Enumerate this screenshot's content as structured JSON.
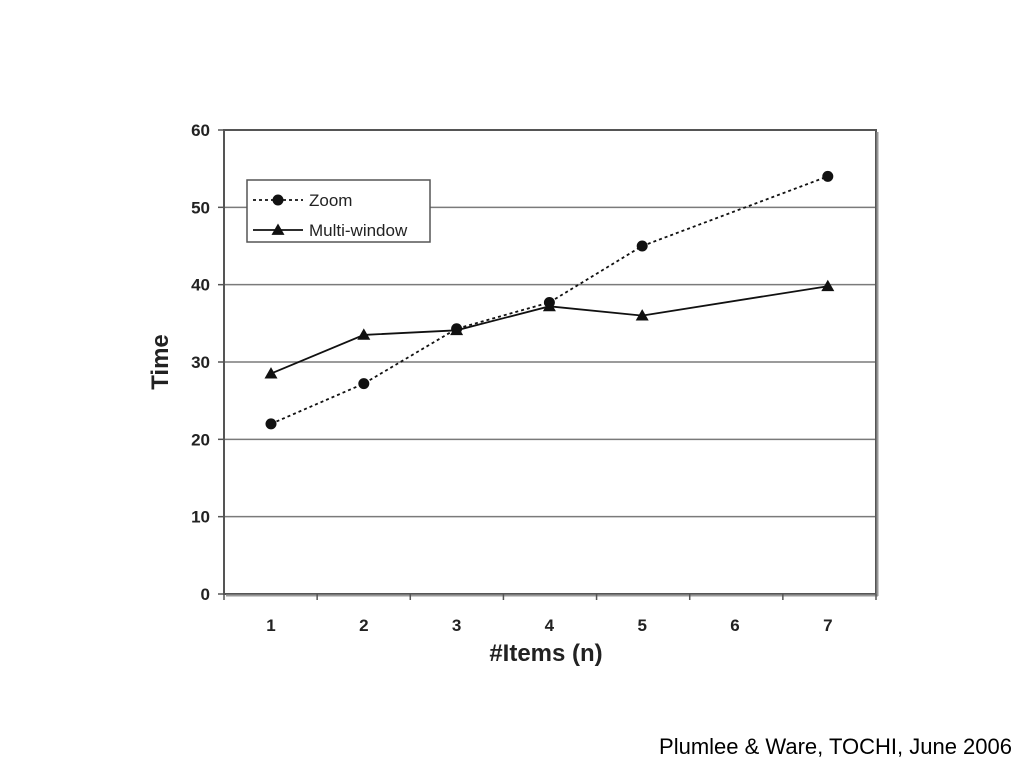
{
  "citation": "Plumlee & Ware, TOCHI, June 2006",
  "chart_data": {
    "type": "line",
    "title": "",
    "xlabel": "#Items (n)",
    "ylabel": "Time",
    "x": [
      1,
      2,
      3,
      4,
      5,
      6,
      7
    ],
    "x_tick_labels": [
      "1",
      "2",
      "3",
      "4",
      "5",
      "6",
      "7"
    ],
    "y_tick_labels": [
      "0",
      "10",
      "20",
      "30",
      "40",
      "50",
      "60"
    ],
    "ylim": [
      0,
      60
    ],
    "grid": "horizontal",
    "legend_position": "top-left",
    "series": [
      {
        "name": "Zoom",
        "line_style": "dotted",
        "marker": "circle",
        "x": [
          1,
          2,
          3,
          4,
          5,
          7
        ],
        "values": [
          22,
          27.2,
          34.3,
          37.7,
          45,
          54
        ]
      },
      {
        "name": "Multi-window",
        "line_style": "solid",
        "marker": "triangle",
        "x": [
          1,
          2,
          3,
          4,
          5,
          7
        ],
        "values": [
          28.5,
          33.5,
          34.1,
          37.2,
          36,
          39.8
        ]
      }
    ],
    "colors": {
      "line": "#111111",
      "grid": "#7a7a7a",
      "frame": "#555555"
    }
  }
}
